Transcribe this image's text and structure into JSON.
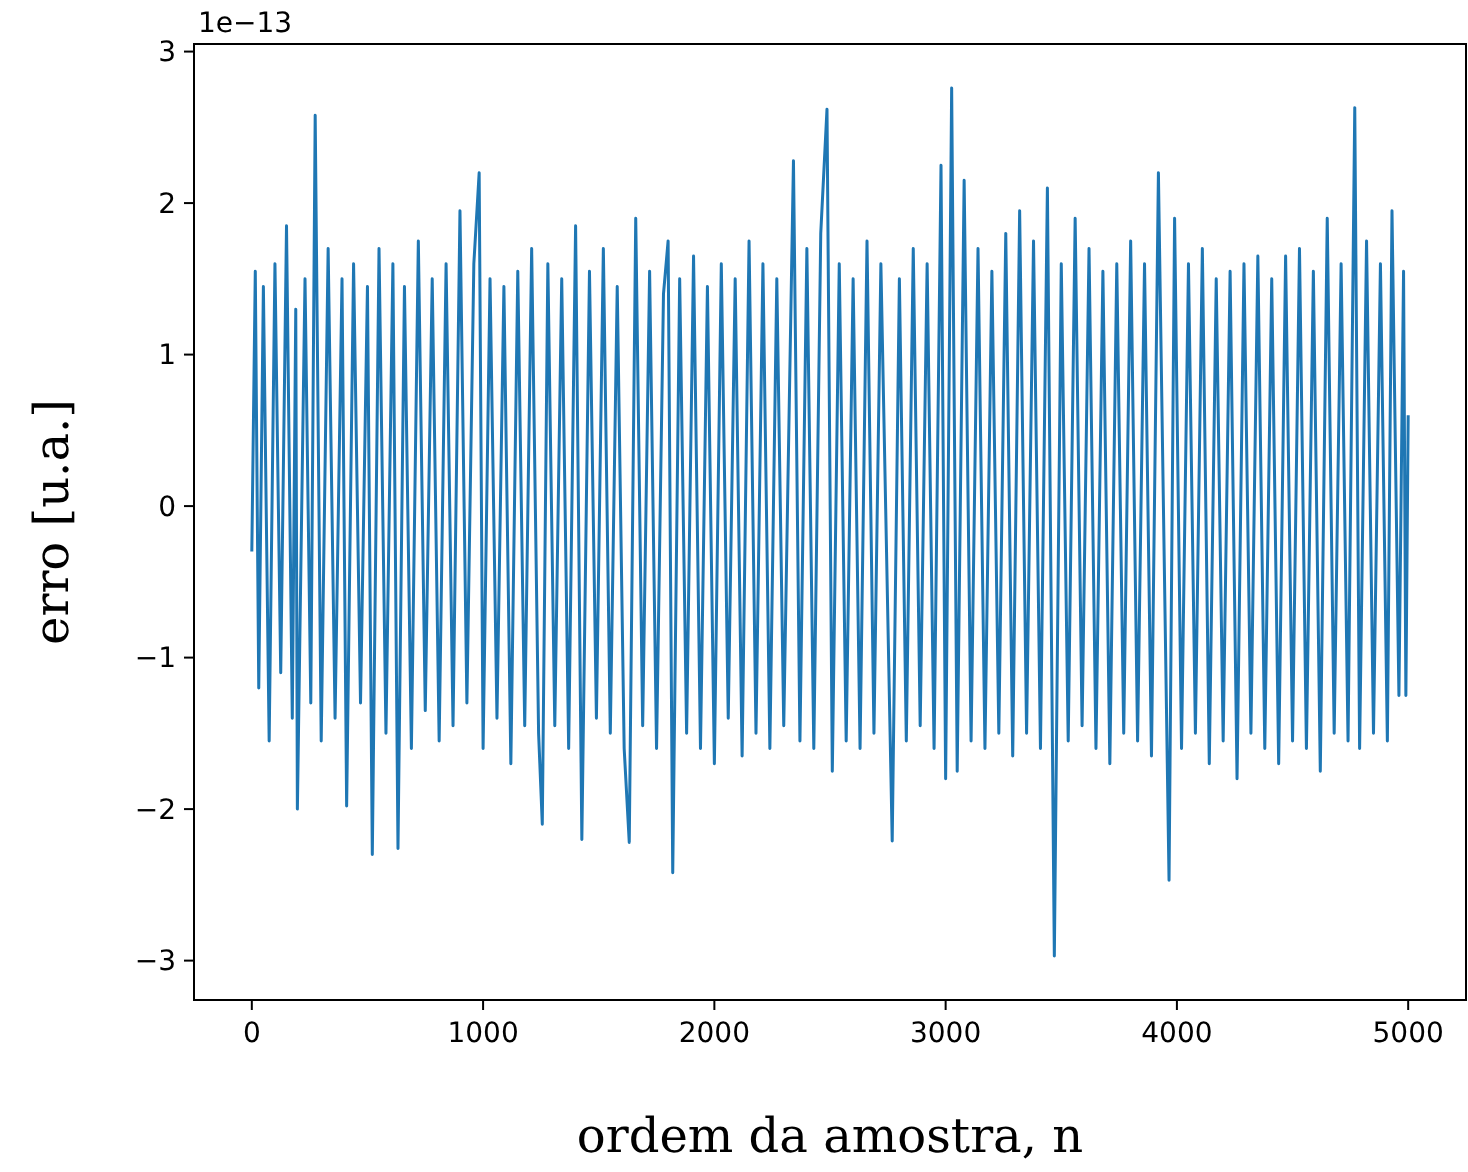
{
  "chart_data": {
    "type": "line",
    "xlabel": "ordem da amostra, n",
    "ylabel": "erro [u.a.]",
    "annotations": [
      "1e−13"
    ],
    "xlim": [
      -250,
      5250
    ],
    "ylim": [
      -3.26,
      3.05
    ],
    "xticks": [
      0,
      1000,
      2000,
      3000,
      4000,
      5000
    ],
    "yticks": [
      {
        "value": -3,
        "label": "−3"
      },
      {
        "value": -2,
        "label": "−2"
      },
      {
        "value": -1,
        "label": "−1"
      },
      0,
      1,
      2,
      3
    ],
    "grid": false,
    "marker": "none",
    "line_style": "solid",
    "series": [
      {
        "color": "#1f77b4",
        "x": [
          0,
          15,
          30,
          50,
          75,
          100,
          125,
          150,
          175,
          190,
          197,
          230,
          255,
          274,
          300,
          330,
          360,
          390,
          410,
          440,
          470,
          500,
          521,
          550,
          580,
          610,
          632,
          660,
          690,
          720,
          750,
          780,
          810,
          840,
          870,
          900,
          930,
          960,
          983,
          1000,
          1030,
          1060,
          1090,
          1120,
          1150,
          1180,
          1210,
          1240,
          1256,
          1280,
          1310,
          1340,
          1370,
          1400,
          1427,
          1460,
          1490,
          1520,
          1550,
          1580,
          1610,
          1632,
          1660,
          1690,
          1720,
          1750,
          1780,
          1800,
          1820,
          1850,
          1880,
          1910,
          1940,
          1970,
          2000,
          2030,
          2060,
          2090,
          2120,
          2150,
          2180,
          2210,
          2240,
          2270,
          2300,
          2342,
          2370,
          2400,
          2430,
          2460,
          2487,
          2510,
          2540,
          2570,
          2600,
          2630,
          2660,
          2690,
          2720,
          2769,
          2800,
          2830,
          2860,
          2890,
          2920,
          2950,
          2980,
          3000,
          3026,
          3050,
          3080,
          3110,
          3140,
          3170,
          3200,
          3230,
          3260,
          3290,
          3320,
          3350,
          3380,
          3410,
          3440,
          3470,
          3500,
          3530,
          3560,
          3590,
          3620,
          3650,
          3680,
          3710,
          3740,
          3770,
          3800,
          3830,
          3860,
          3890,
          3920,
          3966,
          3990,
          4020,
          4050,
          4080,
          4110,
          4140,
          4170,
          4200,
          4230,
          4260,
          4290,
          4320,
          4350,
          4380,
          4410,
          4440,
          4470,
          4500,
          4530,
          4560,
          4590,
          4620,
          4650,
          4680,
          4710,
          4740,
          4769,
          4790,
          4820,
          4850,
          4880,
          4910,
          4930,
          4960,
          4980,
          4990,
          5000
        ],
        "values": [
          -0.3,
          1.55,
          -1.2,
          1.45,
          -1.55,
          1.6,
          -1.1,
          1.85,
          -1.4,
          1.3,
          -2.0,
          1.5,
          -1.3,
          2.58,
          -1.55,
          1.7,
          -1.4,
          1.5,
          -1.98,
          1.6,
          -1.3,
          1.45,
          -2.3,
          1.7,
          -1.5,
          1.6,
          -2.26,
          1.45,
          -1.6,
          1.75,
          -1.35,
          1.5,
          -1.55,
          1.6,
          -1.45,
          1.95,
          -1.3,
          1.6,
          2.2,
          -1.6,
          1.5,
          -1.4,
          1.45,
          -1.7,
          1.55,
          -1.45,
          1.7,
          -1.5,
          -2.1,
          1.6,
          -1.45,
          1.5,
          -1.6,
          1.85,
          -2.2,
          1.55,
          -1.4,
          1.7,
          -1.5,
          1.45,
          -1.6,
          -2.22,
          1.9,
          -1.45,
          1.55,
          -1.6,
          1.4,
          1.75,
          -2.42,
          1.5,
          -1.5,
          1.65,
          -1.6,
          1.45,
          -1.7,
          1.6,
          -1.4,
          1.5,
          -1.65,
          1.75,
          -1.5,
          1.6,
          -1.6,
          1.5,
          -1.45,
          2.28,
          -1.55,
          1.7,
          -1.6,
          1.8,
          2.62,
          -1.75,
          1.6,
          -1.55,
          1.5,
          -1.6,
          1.75,
          -1.5,
          1.6,
          -2.21,
          1.5,
          -1.55,
          1.7,
          -1.45,
          1.6,
          -1.6,
          2.25,
          -1.8,
          2.76,
          -1.75,
          2.15,
          -1.55,
          1.7,
          -1.6,
          1.55,
          -1.5,
          1.8,
          -1.65,
          1.95,
          -1.5,
          1.75,
          -1.6,
          2.1,
          -2.97,
          1.6,
          -1.55,
          1.9,
          -1.45,
          1.7,
          -1.6,
          1.55,
          -1.7,
          1.6,
          -1.5,
          1.75,
          -1.55,
          1.6,
          -1.65,
          2.2,
          -2.47,
          1.9,
          -1.6,
          1.6,
          -1.5,
          1.7,
          -1.7,
          1.5,
          -1.55,
          1.55,
          -1.8,
          1.6,
          -1.5,
          1.65,
          -1.6,
          1.5,
          -1.7,
          1.65,
          -1.55,
          1.7,
          -1.6,
          1.55,
          -1.75,
          1.9,
          -1.5,
          1.6,
          -1.55,
          2.63,
          -1.6,
          1.75,
          -1.5,
          1.6,
          -1.55,
          1.95,
          -1.25,
          1.55,
          -1.25,
          0.6
        ]
      }
    ]
  }
}
